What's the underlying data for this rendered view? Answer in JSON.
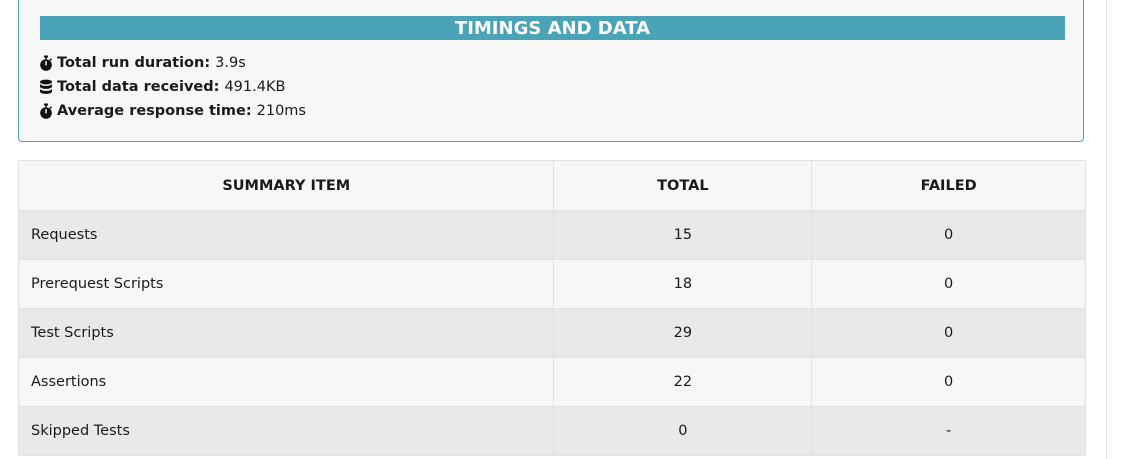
{
  "timings": {
    "title": "TIMINGS AND DATA",
    "stats": [
      {
        "icon": "stopwatch-icon",
        "label": "Total run duration:",
        "value": "3.9s"
      },
      {
        "icon": "database-icon",
        "label": "Total data received:",
        "value": "491.4KB"
      },
      {
        "icon": "stopwatch-icon",
        "label": "Average response time:",
        "value": "210ms"
      }
    ]
  },
  "summary": {
    "headers": {
      "item": "SUMMARY ITEM",
      "total": "TOTAL",
      "failed": "FAILED"
    },
    "rows": [
      {
        "item": "Requests",
        "total": "15",
        "failed": "0"
      },
      {
        "item": "Prerequest Scripts",
        "total": "18",
        "failed": "0"
      },
      {
        "item": "Test Scripts",
        "total": "29",
        "failed": "0"
      },
      {
        "item": "Assertions",
        "total": "22",
        "failed": "0"
      },
      {
        "item": "Skipped Tests",
        "total": "0",
        "failed": "-"
      }
    ]
  },
  "colors": {
    "accent": "#4ba3b8",
    "row_odd": "#e9e9e9",
    "row_even": "#f7f7f7"
  }
}
